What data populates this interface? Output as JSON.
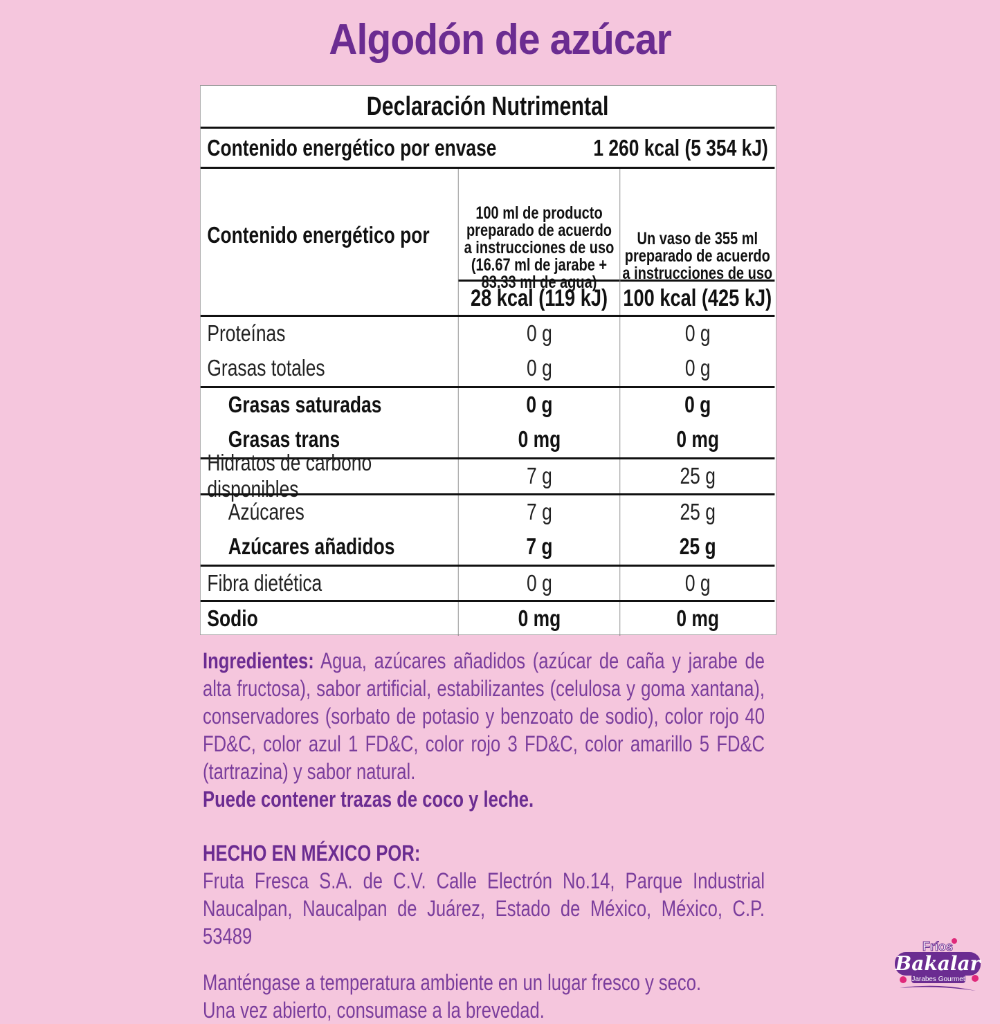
{
  "title": "Algodón de azúcar",
  "table": {
    "heading": "Declaración Nutrimental",
    "energy_per_package_label": "Contenido energético por envase",
    "energy_per_package_value": "1 260 kcal (5 354 kJ)",
    "energy_per_label": "Contenido energético por",
    "col1_header": [
      "100 ml de producto",
      "preparado  de acuerdo",
      "a instrucciones de uso",
      "(16.67 ml de jarabe +",
      "83.33 ml de agua)"
    ],
    "col2_header": [
      "Un vaso de 355 ml",
      "preparado  de acuerdo",
      "a instrucciones de uso"
    ],
    "col1_energy": "28 kcal (119 kJ)",
    "col2_energy": "100 kcal (425 kJ)",
    "rows": [
      {
        "label": "Proteínas",
        "v1": "0 g",
        "v2": "0 g",
        "bold": false,
        "indent": false,
        "line": true
      },
      {
        "label": "Grasas totales",
        "v1": "0 g",
        "v2": "0 g",
        "bold": false,
        "indent": false,
        "line": false
      },
      {
        "label": "Grasas saturadas",
        "v1": "0 g",
        "v2": "0 g",
        "bold": true,
        "indent": true,
        "line": true
      },
      {
        "label": "Grasas trans",
        "v1": "0 mg",
        "v2": "0 mg",
        "bold": true,
        "indent": true,
        "line": false
      },
      {
        "label": "Hidratos de carbono disponibles",
        "v1": "7 g",
        "v2": "25 g",
        "bold": false,
        "indent": false,
        "line": true
      },
      {
        "label": "Azúcares",
        "v1": "7 g",
        "v2": "25 g",
        "bold": false,
        "indent": true,
        "line": true
      },
      {
        "label": "Azúcares añadidos",
        "v1": "7 g",
        "v2": "25 g",
        "bold": true,
        "indent": true,
        "line": false
      },
      {
        "label": "Fibra dietética",
        "v1": "0 g",
        "v2": "0 g",
        "bold": false,
        "indent": false,
        "line": true
      },
      {
        "label": "Sodio",
        "v1": "0 mg",
        "v2": "0 mg",
        "bold": true,
        "indent": false,
        "line": true
      }
    ]
  },
  "ingredients": {
    "label": "Ingredientes:",
    "text": " Agua, azúcares añadidos (azúcar de caña y jarabe de alta fructosa), sabor artificial, estabilizantes (celulosa y goma xantana), conservadores (sorbato de potasio y benzoato de sodio), color rojo 40 FD&C, color azul 1 FD&C, color rojo 3 FD&C, color amarillo 5 FD&C (tartrazina) y sabor natural.",
    "allergens": "Puede contener trazas de coco y leche."
  },
  "manufacturer": {
    "heading": "HECHO EN MÉXICO POR:",
    "address": "Fruta Fresca S.A. de C.V. Calle Electrón No.14, Parque Industrial Naucalpan, Naucalpan de Juárez, Estado de México, México, C.P. 53489"
  },
  "storage": [
    "Manténgase a temperatura ambiente en un lugar fresco y seco.",
    "Una vez abierto, consumase a la brevedad."
  ],
  "logo": {
    "line1": "Fríos",
    "line2": "Bakalar",
    "line3": "Jarabes Gourmet"
  },
  "colors": {
    "background": "#f5c6dd",
    "brand_purple": "#6b2c91",
    "text_purple": "#7a3d9c",
    "accent_pink": "#e0287a"
  }
}
